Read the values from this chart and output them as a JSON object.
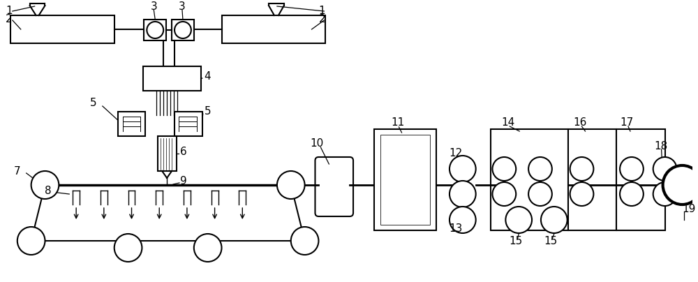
{
  "bg_color": "#ffffff",
  "line_color": "#000000",
  "line_width": 1.5,
  "label_fontsize": 10,
  "figsize": [
    10.0,
    4.04
  ],
  "dpi": 100
}
